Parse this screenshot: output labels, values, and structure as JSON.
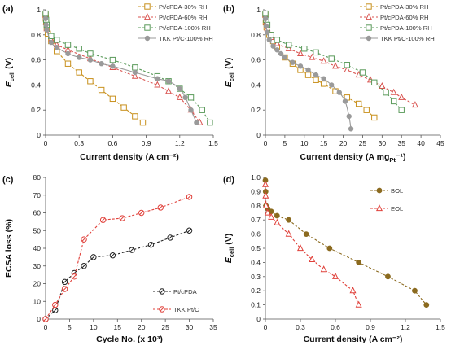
{
  "chart_data": [
    {
      "panel": "(a)",
      "type": "line",
      "xlabel": "Current density (A cm⁻²)",
      "ylabel": "E_cell (V)",
      "xlim": [
        0,
        1.5
      ],
      "ylim": [
        0,
        1.0
      ],
      "xticks": [
        "0",
        "0.3",
        "0.6",
        "0.9",
        "1.2",
        "1.5"
      ],
      "yticks": [
        "0",
        "0.2",
        "0.4",
        "0.6",
        "0.8",
        "1"
      ],
      "grid": false,
      "legend_position": "top-right",
      "series": [
        {
          "name": "Pt/cPDA-30% RH",
          "color": "#c8901c",
          "marker": "square",
          "dashed": true,
          "x": [
            0,
            0.002,
            0.005,
            0.01,
            0.02,
            0.05,
            0.1,
            0.2,
            0.3,
            0.4,
            0.5,
            0.6,
            0.7,
            0.8,
            0.87
          ],
          "y": [
            0.96,
            0.93,
            0.9,
            0.86,
            0.81,
            0.75,
            0.67,
            0.57,
            0.5,
            0.43,
            0.36,
            0.29,
            0.22,
            0.15,
            0.1
          ]
        },
        {
          "name": "Pt/cPDA-60% RH",
          "color": "#d9534f",
          "marker": "triangle",
          "dashed": true,
          "x": [
            0,
            0.005,
            0.01,
            0.05,
            0.1,
            0.2,
            0.4,
            0.6,
            0.8,
            1.0,
            1.1,
            1.2,
            1.3,
            1.38
          ],
          "y": [
            0.96,
            0.9,
            0.85,
            0.76,
            0.72,
            0.68,
            0.61,
            0.54,
            0.47,
            0.4,
            0.35,
            0.3,
            0.2,
            0.1
          ]
        },
        {
          "name": "Pt/cPDA-100% RH",
          "color": "#5a9a5a",
          "marker": "square",
          "dashed": true,
          "x": [
            0,
            0.005,
            0.01,
            0.05,
            0.1,
            0.2,
            0.3,
            0.4,
            0.6,
            0.8,
            1.0,
            1.1,
            1.2,
            1.3,
            1.4,
            1.47
          ],
          "y": [
            0.97,
            0.92,
            0.88,
            0.79,
            0.76,
            0.72,
            0.69,
            0.65,
            0.6,
            0.54,
            0.47,
            0.43,
            0.37,
            0.3,
            0.2,
            0.1
          ]
        },
        {
          "name": "TKK Pt/C-100% RH",
          "color": "#9a9a9a",
          "marker": "circle",
          "dashed": false,
          "x": [
            0,
            0.005,
            0.01,
            0.05,
            0.1,
            0.2,
            0.3,
            0.4,
            0.5,
            0.6,
            0.8,
            1.0,
            1.1,
            1.2,
            1.25,
            1.3,
            1.35
          ],
          "y": [
            0.93,
            0.88,
            0.84,
            0.74,
            0.7,
            0.65,
            0.62,
            0.6,
            0.57,
            0.55,
            0.5,
            0.45,
            0.43,
            0.37,
            0.3,
            0.2,
            0.1
          ]
        }
      ]
    },
    {
      "panel": "(b)",
      "type": "line",
      "xlabel": "Current density (A mg_Pt⁻¹)",
      "ylabel": "E_cell (V)",
      "xlim": [
        0,
        45
      ],
      "ylim": [
        0,
        1.0
      ],
      "xticks": [
        "0",
        "5",
        "10",
        "15",
        "20",
        "25",
        "30",
        "35",
        "40",
        "45"
      ],
      "yticks": [
        "0",
        "0.2",
        "0.4",
        "0.6",
        "0.8",
        "1"
      ],
      "grid": false,
      "legend_position": "top-right",
      "series": [
        {
          "name": "Pt/cPDA-30% RH",
          "color": "#c8901c",
          "marker": "square",
          "dashed": true,
          "x": [
            0,
            0.1,
            0.3,
            1,
            2,
            3,
            5,
            7,
            9,
            11,
            13,
            15,
            18,
            21,
            24,
            26,
            28
          ],
          "y": [
            0.96,
            0.9,
            0.86,
            0.8,
            0.75,
            0.7,
            0.62,
            0.57,
            0.52,
            0.48,
            0.44,
            0.41,
            0.35,
            0.3,
            0.25,
            0.2,
            0.14
          ]
        },
        {
          "name": "Pt/cPDA-60% RH",
          "color": "#d9534f",
          "marker": "triangle",
          "dashed": true,
          "x": [
            0,
            0.2,
            0.5,
            1.5,
            3,
            6,
            9,
            12,
            15,
            18,
            21,
            24,
            27,
            30,
            33,
            35,
            38.5
          ],
          "y": [
            0.96,
            0.9,
            0.85,
            0.78,
            0.73,
            0.69,
            0.65,
            0.62,
            0.59,
            0.55,
            0.52,
            0.48,
            0.44,
            0.39,
            0.34,
            0.3,
            0.24
          ]
        },
        {
          "name": "Pt/cPDA-100% RH",
          "color": "#5a9a5a",
          "marker": "square",
          "dashed": true,
          "x": [
            0,
            0.2,
            0.5,
            1.5,
            3,
            6,
            10,
            13,
            17,
            21,
            25,
            28,
            31,
            33,
            35
          ],
          "y": [
            0.97,
            0.92,
            0.88,
            0.8,
            0.76,
            0.72,
            0.69,
            0.66,
            0.61,
            0.56,
            0.5,
            0.42,
            0.34,
            0.27,
            0.2
          ]
        },
        {
          "name": "TKK Pt/C-100% RH",
          "color": "#9a9a9a",
          "marker": "circle",
          "dashed": false,
          "x": [
            0,
            0.2,
            0.5,
            1,
            2,
            3,
            4,
            5,
            7,
            9,
            11,
            13,
            15,
            17,
            19,
            20.5,
            21.5,
            22
          ],
          "y": [
            0.93,
            0.87,
            0.82,
            0.76,
            0.71,
            0.68,
            0.65,
            0.62,
            0.58,
            0.55,
            0.52,
            0.48,
            0.45,
            0.4,
            0.34,
            0.27,
            0.15,
            0.05
          ]
        }
      ]
    },
    {
      "panel": "(c)",
      "type": "line",
      "xlabel": "Cycle No. (x 10³)",
      "ylabel": "ECSA loss (%)",
      "xlim": [
        0,
        35
      ],
      "ylim": [
        0,
        80
      ],
      "xticks": [
        "0",
        "5",
        "10",
        "15",
        "20",
        "25",
        "30",
        "35"
      ],
      "yticks": [
        "0",
        "10",
        "20",
        "30",
        "40",
        "50",
        "60",
        "70",
        "80"
      ],
      "grid": false,
      "legend_position": "bottom-right",
      "series": [
        {
          "name": "Pt/cPDA",
          "color": "#222222",
          "marker": "circle-slash",
          "dashed": true,
          "x": [
            0,
            2,
            4,
            6,
            8,
            10,
            14,
            18,
            22,
            26,
            30
          ],
          "y": [
            0,
            5,
            21,
            26,
            30,
            35,
            36,
            39,
            42,
            46,
            50
          ]
        },
        {
          "name": "TKK Pt/C",
          "color": "#e0403a",
          "marker": "circle-slash",
          "dashed": true,
          "x": [
            0,
            2,
            4,
            6,
            8,
            12,
            16,
            20,
            24,
            30
          ],
          "y": [
            0,
            8,
            17,
            24,
            45,
            56,
            57,
            60,
            63,
            69
          ]
        }
      ]
    },
    {
      "panel": "(d)",
      "type": "line",
      "xlabel": "Current density (A cm⁻²)",
      "ylabel": "E_cell (V)",
      "xlim": [
        0,
        1.5
      ],
      "ylim": [
        0,
        1.0
      ],
      "xticks": [
        "0",
        "0.3",
        "0.6",
        "0.9",
        "1.2",
        "1.5"
      ],
      "yticks": [
        "0",
        "0.1",
        "0.2",
        "0.3",
        "0.4",
        "0.5",
        "0.6",
        "0.7",
        "0.8",
        "0.9",
        "1.0"
      ],
      "grid": false,
      "legend_position": "top-right",
      "series": [
        {
          "name": "BOL",
          "color": "#8b6a1f",
          "marker": "filled-circle",
          "dashed": true,
          "x": [
            0,
            0.002,
            0.005,
            0.02,
            0.05,
            0.1,
            0.2,
            0.35,
            0.55,
            0.8,
            1.05,
            1.28,
            1.38
          ],
          "y": [
            0.98,
            0.9,
            0.8,
            0.78,
            0.76,
            0.73,
            0.7,
            0.6,
            0.5,
            0.4,
            0.3,
            0.2,
            0.1
          ]
        },
        {
          "name": "EOL",
          "color": "#e0403a",
          "marker": "triangle",
          "dashed": true,
          "x": [
            0,
            0.002,
            0.005,
            0.02,
            0.05,
            0.1,
            0.2,
            0.3,
            0.4,
            0.5,
            0.6,
            0.75,
            0.8
          ],
          "y": [
            0.95,
            0.87,
            0.8,
            0.75,
            0.72,
            0.68,
            0.6,
            0.5,
            0.42,
            0.35,
            0.3,
            0.2,
            0.1
          ]
        }
      ]
    }
  ]
}
